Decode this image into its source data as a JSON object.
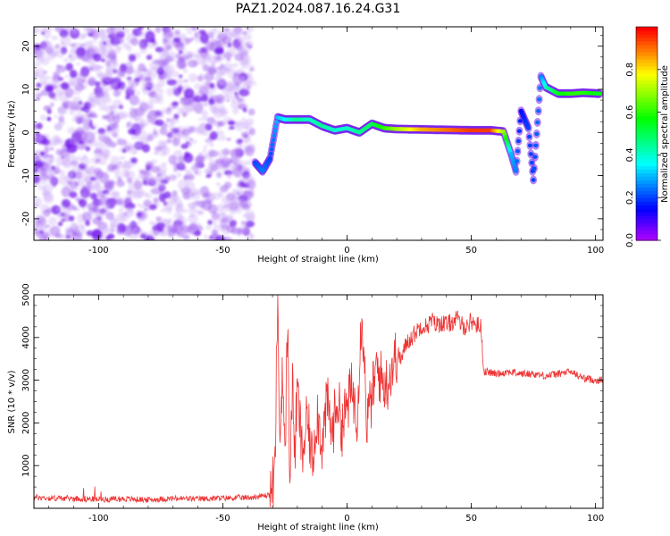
{
  "title": "PAZ1.2024.087.16.24.G31",
  "chart_data": [
    {
      "type": "heatmap",
      "xlabel": "Height of straight line (km)",
      "ylabel": "Frequency (Hz)",
      "xlim": [
        -126,
        103
      ],
      "ylim": [
        -25,
        24.5
      ],
      "xticks": [
        -100,
        -50,
        0,
        50,
        100
      ],
      "yticks": [
        -20,
        -10,
        0,
        10,
        20
      ],
      "colorbar": {
        "label": "Normalized spectral amplitude",
        "range": [
          0.0,
          1.0
        ],
        "ticks": [
          0.0,
          0.2,
          0.4,
          0.6,
          0.8
        ],
        "colormap": "gist_rainbow_r"
      },
      "ridge": [
        {
          "x": -37,
          "y": -7,
          "amp": 0.2
        },
        {
          "x": -34,
          "y": -9,
          "amp": 0.25
        },
        {
          "x": -31,
          "y": -6,
          "amp": 0.2
        },
        {
          "x": -28,
          "y": 3.5,
          "amp": 0.3
        },
        {
          "x": -25,
          "y": 3,
          "amp": 0.35
        },
        {
          "x": -20,
          "y": 3,
          "amp": 0.45
        },
        {
          "x": -15,
          "y": 3,
          "amp": 0.4
        },
        {
          "x": -10,
          "y": 1.5,
          "amp": 0.45
        },
        {
          "x": -5,
          "y": 0.5,
          "amp": 0.4
        },
        {
          "x": 0,
          "y": 1,
          "amp": 0.4
        },
        {
          "x": 5,
          "y": 0,
          "amp": 0.45
        },
        {
          "x": 10,
          "y": 2,
          "amp": 0.5
        },
        {
          "x": 15,
          "y": 1,
          "amp": 0.6
        },
        {
          "x": 20,
          "y": 0.8,
          "amp": 0.7
        },
        {
          "x": 30,
          "y": 0.7,
          "amp": 0.85
        },
        {
          "x": 40,
          "y": 0.6,
          "amp": 0.9
        },
        {
          "x": 50,
          "y": 0.5,
          "amp": 0.95
        },
        {
          "x": 58,
          "y": 0.5,
          "amp": 0.95
        },
        {
          "x": 63,
          "y": 0.2,
          "amp": 0.7
        },
        {
          "x": 66,
          "y": -5,
          "amp": 0.3
        },
        {
          "x": 68,
          "y": -9,
          "amp": 0.25
        },
        {
          "x": 70,
          "y": 5,
          "amp": 0.15
        },
        {
          "x": 73,
          "y": 1,
          "amp": 0.2
        },
        {
          "x": 75,
          "y": -11,
          "amp": 0.2
        },
        {
          "x": 78,
          "y": 13,
          "amp": 0.25
        },
        {
          "x": 80,
          "y": 10.5,
          "amp": 0.4
        },
        {
          "x": 85,
          "y": 9,
          "amp": 0.55
        },
        {
          "x": 90,
          "y": 9,
          "amp": 0.6
        },
        {
          "x": 95,
          "y": 9.2,
          "amp": 0.6
        },
        {
          "x": 102,
          "y": 9,
          "amp": 0.55
        }
      ]
    },
    {
      "type": "line",
      "xlabel": "Height of straight line (km)",
      "ylabel": "SNR (10 * v/v)",
      "xlim": [
        -126,
        103
      ],
      "ylim": [
        0,
        5000
      ],
      "xticks": [
        -100,
        -50,
        0,
        50,
        100
      ],
      "yticks": [
        1000,
        2000,
        3000,
        4000,
        5000
      ],
      "series": [
        {
          "color": "#ee3333",
          "x": [
            -126,
            -120,
            -110,
            -100,
            -90,
            -80,
            -70,
            -60,
            -50,
            -40,
            -35,
            -31,
            -29,
            -28,
            -27,
            -26,
            -25,
            -24,
            -23,
            -22,
            -21,
            -20,
            -18,
            -16,
            -14,
            -12,
            -10,
            -8,
            -6,
            -4,
            -2,
            0,
            2,
            4,
            6,
            8,
            10,
            12,
            14,
            16,
            18,
            20,
            22,
            24,
            26,
            28,
            30,
            32,
            34,
            36,
            38,
            40,
            42,
            44,
            46,
            48,
            50,
            52,
            54,
            55,
            56,
            60,
            65,
            70,
            75,
            80,
            85,
            90,
            95,
            100,
            103
          ],
          "y": [
            260,
            240,
            230,
            210,
            220,
            200,
            230,
            220,
            240,
            250,
            280,
            320,
            800,
            4900,
            1400,
            3500,
            900,
            4500,
            800,
            2900,
            1300,
            2800,
            1200,
            2100,
            1100,
            2300,
            1500,
            2500,
            1700,
            2600,
            1900,
            2400,
            2800,
            2200,
            4700,
            2000,
            2600,
            3300,
            3000,
            2900,
            3300,
            3600,
            3500,
            3900,
            4000,
            4150,
            4300,
            4250,
            4400,
            4300,
            4350,
            4300,
            4350,
            4450,
            4300,
            4250,
            4400,
            4300,
            4250,
            3200,
            3200,
            3150,
            3200,
            3150,
            3150,
            3100,
            3150,
            3200,
            3050,
            3000,
            3000
          ]
        }
      ]
    }
  ]
}
